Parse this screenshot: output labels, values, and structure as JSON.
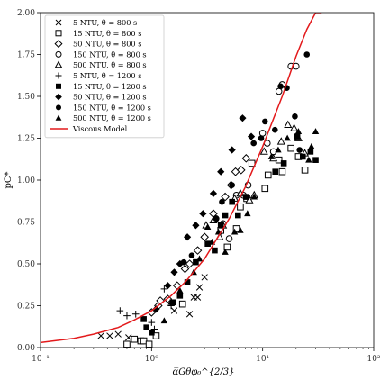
{
  "chart_data": {
    "type": "scatter",
    "title": "",
    "xlabel": "α̅G̅θφ₀^{2/3}",
    "ylabel": "pC*",
    "xscale": "log",
    "xlim": [
      0.1,
      100
    ],
    "ylim": [
      0.0,
      2.0
    ],
    "x_ticks": [
      0.1,
      1,
      10,
      100
    ],
    "x_tick_labels": [
      "10⁻¹",
      "10⁰",
      "10¹",
      "10²"
    ],
    "y_ticks": [
      0.0,
      0.25,
      0.5,
      0.75,
      1.0,
      1.25,
      1.5,
      1.75,
      2.0
    ],
    "y_tick_labels": [
      "0.00",
      "0.25",
      "0.50",
      "0.75",
      "1.00",
      "1.25",
      "1.50",
      "1.75",
      "2.00"
    ],
    "grid": false,
    "legend_position": "top-left",
    "series": [
      {
        "name": "5 NTU, θ = 800 s",
        "marker": "x",
        "points": [
          [
            0.35,
            0.07
          ],
          [
            0.42,
            0.07
          ],
          [
            0.5,
            0.08
          ],
          [
            0.62,
            0.06
          ],
          [
            1.6,
            0.22
          ],
          [
            2.2,
            0.2
          ],
          [
            2.4,
            0.3
          ],
          [
            2.6,
            0.3
          ],
          [
            2.7,
            0.36
          ],
          [
            3.0,
            0.42
          ]
        ]
      },
      {
        "name": "15 NTU, θ = 800 s",
        "marker": "square-open",
        "points": [
          [
            0.6,
            0.02
          ],
          [
            0.7,
            0.05
          ],
          [
            0.8,
            0.04
          ],
          [
            0.85,
            0.04
          ],
          [
            0.95,
            0.02
          ],
          [
            1.1,
            0.07
          ],
          [
            1.9,
            0.26
          ],
          [
            4.2,
            0.7
          ],
          [
            4.8,
            0.6
          ],
          [
            5.8,
            0.71
          ],
          [
            6.3,
            0.84
          ],
          [
            7.2,
            0.89
          ],
          [
            8.0,
            1.1
          ],
          [
            10.5,
            0.95
          ],
          [
            11.2,
            1.03
          ],
          [
            14.0,
            1.12
          ],
          [
            15.0,
            1.05
          ],
          [
            18.0,
            1.19
          ],
          [
            21.0,
            1.14
          ],
          [
            24.0,
            1.06
          ]
        ]
      },
      {
        "name": "50 NTU, θ = 800 s",
        "marker": "diamond-open",
        "points": [
          [
            1.0,
            0.21
          ],
          [
            1.15,
            0.25
          ],
          [
            1.2,
            0.28
          ],
          [
            1.4,
            0.29
          ],
          [
            1.7,
            0.37
          ],
          [
            2.0,
            0.47
          ],
          [
            2.2,
            0.5
          ],
          [
            2.6,
            0.58
          ],
          [
            3.0,
            0.66
          ],
          [
            3.6,
            0.8
          ],
          [
            4.6,
            0.9
          ],
          [
            5.2,
            0.97
          ],
          [
            5.7,
            1.05
          ],
          [
            6.4,
            1.06
          ],
          [
            7.1,
            1.13
          ]
        ]
      },
      {
        "name": "150 NTU, θ = 800 s",
        "marker": "circle-open",
        "points": [
          [
            3.8,
            0.77
          ],
          [
            4.4,
            0.74
          ],
          [
            5.0,
            0.65
          ],
          [
            5.8,
            0.91
          ],
          [
            6.7,
            0.91
          ],
          [
            7.4,
            0.97
          ],
          [
            10.0,
            1.28
          ],
          [
            11.0,
            1.22
          ],
          [
            12.5,
            1.17
          ],
          [
            14.0,
            1.53
          ],
          [
            15.0,
            1.57
          ],
          [
            18.0,
            1.68
          ],
          [
            20.0,
            1.68
          ]
        ]
      },
      {
        "name": "500 NTU, θ = 800 s",
        "marker": "triangle-open",
        "points": [
          [
            3.1,
            0.73
          ],
          [
            3.6,
            0.76
          ],
          [
            4.1,
            0.66
          ],
          [
            4.4,
            0.73
          ],
          [
            5.6,
            0.89
          ],
          [
            6.3,
            0.92
          ],
          [
            7.6,
            0.88
          ],
          [
            8.4,
            0.91
          ],
          [
            10.3,
            1.17
          ],
          [
            12.5,
            1.13
          ],
          [
            14.7,
            1.23
          ],
          [
            16.9,
            1.33
          ],
          [
            19.2,
            1.31
          ],
          [
            21.0,
            1.25
          ],
          [
            24.0,
            1.16
          ]
        ]
      },
      {
        "name": "5 NTU, θ = 1200 s",
        "marker": "plus",
        "points": [
          [
            0.52,
            0.22
          ],
          [
            0.6,
            0.19
          ],
          [
            0.72,
            0.2
          ],
          [
            1.0,
            0.15
          ],
          [
            1.06,
            0.11
          ],
          [
            1.5,
            0.25
          ],
          [
            1.3,
            0.35
          ]
        ]
      },
      {
        "name": "15 NTU, θ = 1200 s",
        "marker": "square-filled",
        "points": [
          [
            0.85,
            0.17
          ],
          [
            0.9,
            0.12
          ],
          [
            1.0,
            0.09
          ],
          [
            1.55,
            0.27
          ],
          [
            1.8,
            0.31
          ],
          [
            2.1,
            0.39
          ],
          [
            2.5,
            0.51
          ],
          [
            3.2,
            0.62
          ],
          [
            3.7,
            0.58
          ],
          [
            4.2,
            0.73
          ],
          [
            4.6,
            0.79
          ],
          [
            5.3,
            0.87
          ],
          [
            6.0,
            0.79
          ],
          [
            7.1,
            0.9
          ],
          [
            13.0,
            1.05
          ],
          [
            15.5,
            1.1
          ],
          [
            20.5,
            1.26
          ],
          [
            23.0,
            1.14
          ],
          [
            27.0,
            1.17
          ],
          [
            30.0,
            1.12
          ]
        ]
      },
      {
        "name": "50 NTU, θ = 1200 s",
        "marker": "diamond-filled",
        "points": [
          [
            1.1,
            0.23
          ],
          [
            1.4,
            0.37
          ],
          [
            1.6,
            0.45
          ],
          [
            1.8,
            0.5
          ],
          [
            2.1,
            0.66
          ],
          [
            2.5,
            0.73
          ],
          [
            2.9,
            0.8
          ],
          [
            3.6,
            0.92
          ],
          [
            4.2,
            1.05
          ],
          [
            5.3,
            1.18
          ],
          [
            6.6,
            1.37
          ],
          [
            7.9,
            1.26
          ]
        ]
      },
      {
        "name": "150 NTU, θ = 1200 s",
        "marker": "circle-filled",
        "points": [
          [
            1.95,
            0.51
          ],
          [
            2.3,
            0.55
          ],
          [
            3.8,
            0.77
          ],
          [
            4.3,
            0.87
          ],
          [
            5.3,
            0.97
          ],
          [
            8.3,
            1.22
          ],
          [
            9.7,
            1.25
          ],
          [
            10.5,
            1.35
          ],
          [
            12.9,
            1.3
          ],
          [
            14.5,
            1.56
          ],
          [
            16.5,
            1.55
          ],
          [
            19.5,
            1.38
          ],
          [
            21.5,
            1.18
          ],
          [
            25.0,
            1.75
          ]
        ]
      },
      {
        "name": "500 NTU, θ = 1200 s",
        "marker": "triangle-filled",
        "points": [
          [
            1.3,
            0.16
          ],
          [
            1.5,
            0.27
          ],
          [
            1.8,
            0.34
          ],
          [
            2.4,
            0.45
          ],
          [
            2.7,
            0.53
          ],
          [
            3.2,
            0.72
          ],
          [
            3.5,
            0.63
          ],
          [
            4.0,
            0.69
          ],
          [
            4.6,
            0.57
          ],
          [
            5.6,
            0.69
          ],
          [
            6.3,
            0.7
          ],
          [
            7.3,
            0.8
          ],
          [
            8.4,
            0.9
          ],
          [
            12.0,
            1.14
          ],
          [
            13.8,
            1.18
          ],
          [
            16.7,
            1.25
          ],
          [
            21.0,
            1.29
          ],
          [
            27.5,
            1.2
          ],
          [
            30.0,
            1.29
          ],
          [
            26.0,
            1.12
          ]
        ]
      }
    ],
    "model": {
      "name": "Viscous Model",
      "color": "#e31a1c",
      "x": [
        0.1,
        0.2,
        0.3,
        0.5,
        0.7,
        1.0,
        1.5,
        2.0,
        3.0,
        5.0,
        7.0,
        10.0,
        15.0,
        20.0,
        25.0,
        30.0,
        34.0
      ],
      "y": [
        0.03,
        0.055,
        0.08,
        0.12,
        0.165,
        0.22,
        0.31,
        0.39,
        0.53,
        0.77,
        0.96,
        1.2,
        1.5,
        1.74,
        1.9,
        2.0,
        2.0
      ]
    }
  }
}
